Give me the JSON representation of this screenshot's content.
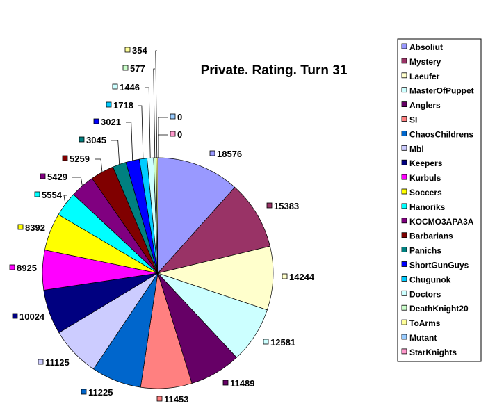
{
  "chart_data": {
    "type": "pie",
    "title": "Private. Rating. Turn 31",
    "legend_position": "right",
    "series": [
      {
        "name": "Absoliut",
        "value": 18576,
        "color": "#9999ff"
      },
      {
        "name": "Mystery",
        "value": 15383,
        "color": "#993366"
      },
      {
        "name": "Laeufer",
        "value": 14244,
        "color": "#ffffcc"
      },
      {
        "name": "MasterOfPuppet",
        "value": 12581,
        "color": "#ccffff"
      },
      {
        "name": "Anglers",
        "value": 11489,
        "color": "#660066"
      },
      {
        "name": "SI",
        "value": 11453,
        "color": "#ff8080"
      },
      {
        "name": "ChaosChildrens",
        "value": 11225,
        "color": "#0066cc"
      },
      {
        "name": "Mbl",
        "value": 11125,
        "color": "#ccccff"
      },
      {
        "name": "Keepers",
        "value": 10024,
        "color": "#000080"
      },
      {
        "name": "Kurbuls",
        "value": 8925,
        "color": "#ff00ff"
      },
      {
        "name": "Soccers",
        "value": 8392,
        "color": "#ffff00"
      },
      {
        "name": "Hanoriks",
        "value": 5554,
        "color": "#00ffff"
      },
      {
        "name": "KOCMO3APA3A",
        "value": 5429,
        "color": "#800080"
      },
      {
        "name": "Barbarians",
        "value": 5259,
        "color": "#800000"
      },
      {
        "name": "Panichs",
        "value": 3045,
        "color": "#008080"
      },
      {
        "name": "ShortGunGuys",
        "value": 3021,
        "color": "#0000ff"
      },
      {
        "name": "Chugunok",
        "value": 1718,
        "color": "#00ccff"
      },
      {
        "name": "Doctors",
        "value": 1446,
        "color": "#ccffff"
      },
      {
        "name": "DeathKnight20",
        "value": 577,
        "color": "#ccffcc"
      },
      {
        "name": "ToArms",
        "value": 354,
        "color": "#ffff99"
      },
      {
        "name": "Mutant",
        "value": 0,
        "color": "#99ccff"
      },
      {
        "name": "StarKnights",
        "value": 0,
        "color": "#ff99cc"
      }
    ]
  }
}
